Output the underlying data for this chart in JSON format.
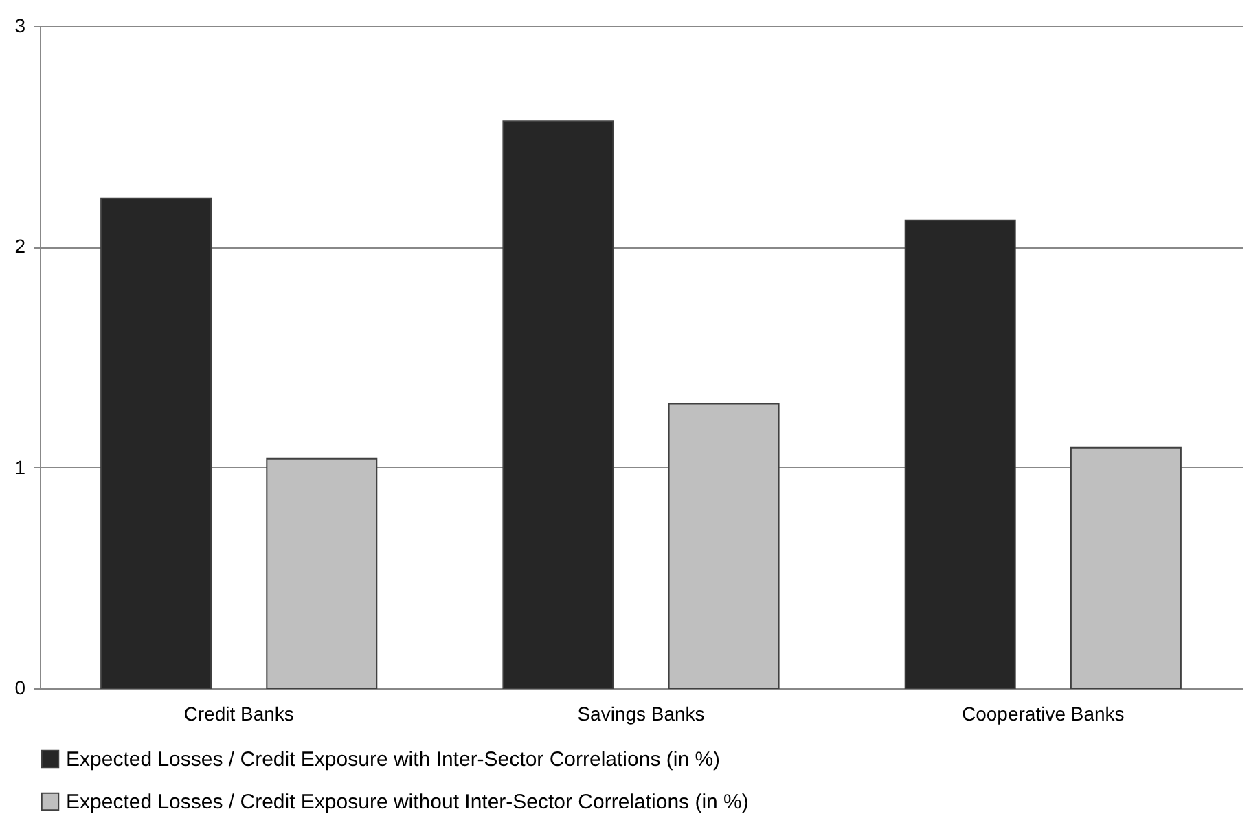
{
  "chart_data": {
    "type": "bar",
    "categories": [
      "Credit Banks",
      "Savings Banks",
      "Cooperative Banks"
    ],
    "series": [
      {
        "name": "Expected Losses / Credit Exposure with Inter-Sector Correlations (in %)",
        "color": "#262626",
        "values": [
          2.22,
          2.57,
          2.12
        ]
      },
      {
        "name": "Expected Losses / Credit Exposure without Inter-Sector Correlations (in %)",
        "color": "#bfbfbf",
        "values": [
          1.04,
          1.29,
          1.09
        ]
      }
    ],
    "ylim": [
      0,
      3
    ],
    "yticks": [
      0,
      1,
      2,
      3
    ],
    "grid": "y",
    "legend": "bottom"
  }
}
